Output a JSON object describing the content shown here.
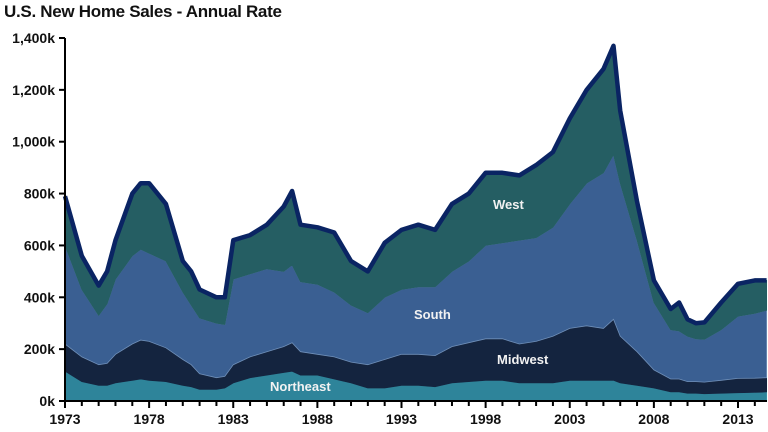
{
  "chart_data": {
    "type": "area",
    "stacked": true,
    "title": "U.S. New Home Sales - Annual Rate",
    "xlabel": "",
    "ylabel": "",
    "xlim": [
      1973,
      2014.7
    ],
    "ylim": [
      0,
      1400
    ],
    "grid": false,
    "legend": "inline labels",
    "y_ticks": [
      {
        "value": 0,
        "label": "0k"
      },
      {
        "value": 200,
        "label": "200k"
      },
      {
        "value": 400,
        "label": "400k"
      },
      {
        "value": 600,
        "label": "600k"
      },
      {
        "value": 800,
        "label": "800k"
      },
      {
        "value": 1000,
        "label": "1,000k"
      },
      {
        "value": 1200,
        "label": "1,200k"
      },
      {
        "value": 1400,
        "label": "1,400k"
      }
    ],
    "x_ticks": [
      {
        "value": 1973,
        "label": "1973"
      },
      {
        "value": 1978,
        "label": "1978"
      },
      {
        "value": 1983,
        "label": "1983"
      },
      {
        "value": 1988,
        "label": "1988"
      },
      {
        "value": 1993,
        "label": "1993"
      },
      {
        "value": 1998,
        "label": "1998"
      },
      {
        "value": 2003,
        "label": "2003"
      },
      {
        "value": 2008,
        "label": "2008"
      },
      {
        "value": 2013,
        "label": "2013"
      }
    ],
    "x": [
      1973,
      1974,
      1975,
      1975.5,
      1976,
      1977,
      1977.5,
      1978,
      1979,
      1980,
      1980.5,
      1981,
      1982,
      1982.5,
      1983,
      1984,
      1985,
      1986,
      1986.5,
      1987,
      1988,
      1989,
      1990,
      1991,
      1992,
      1993,
      1994,
      1995,
      1996,
      1997,
      1998,
      1999,
      2000,
      2001,
      2002,
      2003,
      2004,
      2005,
      2005.6,
      2006,
      2007,
      2008,
      2009,
      2009.5,
      2010,
      2010.5,
      2011,
      2012,
      2013,
      2014,
      2014.7
    ],
    "series": [
      {
        "name": "Northeast",
        "label": "Northeast",
        "color": "#2E849A",
        "values": [
          115,
          75,
          60,
          60,
          70,
          80,
          85,
          80,
          75,
          60,
          55,
          45,
          45,
          50,
          70,
          90,
          100,
          110,
          115,
          100,
          100,
          85,
          70,
          50,
          50,
          60,
          60,
          55,
          70,
          75,
          80,
          80,
          70,
          70,
          70,
          80,
          80,
          80,
          80,
          70,
          60,
          50,
          35,
          35,
          30,
          30,
          28,
          30,
          32,
          33,
          35
        ]
      },
      {
        "name": "Midwest",
        "label": "Midwest",
        "color": "#14243F",
        "values": [
          105,
          95,
          80,
          85,
          110,
          140,
          150,
          150,
          130,
          100,
          85,
          60,
          45,
          45,
          70,
          80,
          90,
          100,
          110,
          90,
          80,
          85,
          80,
          90,
          110,
          120,
          120,
          120,
          140,
          150,
          160,
          160,
          150,
          160,
          180,
          200,
          210,
          200,
          235,
          180,
          130,
          70,
          50,
          50,
          45,
          45,
          45,
          50,
          55,
          55,
          55
        ]
      },
      {
        "name": "South",
        "label": "South",
        "color": "#3A5F92",
        "values": [
          380,
          260,
          190,
          230,
          290,
          340,
          350,
          340,
          335,
          260,
          230,
          215,
          210,
          200,
          330,
          320,
          320,
          290,
          300,
          270,
          270,
          250,
          220,
          200,
          240,
          250,
          260,
          265,
          290,
          315,
          360,
          370,
          400,
          400,
          420,
          480,
          550,
          600,
          635,
          590,
          430,
          260,
          190,
          185,
          175,
          165,
          165,
          195,
          240,
          250,
          260
        ]
      },
      {
        "name": "West",
        "label": "West",
        "color": "#255E63",
        "values": [
          190,
          130,
          115,
          125,
          150,
          240,
          255,
          270,
          220,
          120,
          130,
          110,
          100,
          105,
          150,
          150,
          170,
          250,
          285,
          220,
          220,
          230,
          170,
          160,
          210,
          230,
          240,
          220,
          260,
          260,
          280,
          270,
          250,
          280,
          290,
          330,
          360,
          400,
          420,
          280,
          150,
          85,
          80,
          110,
          65,
          60,
          65,
          105,
          125,
          127,
          115
        ]
      }
    ],
    "total_line_color": "#0A2463"
  }
}
